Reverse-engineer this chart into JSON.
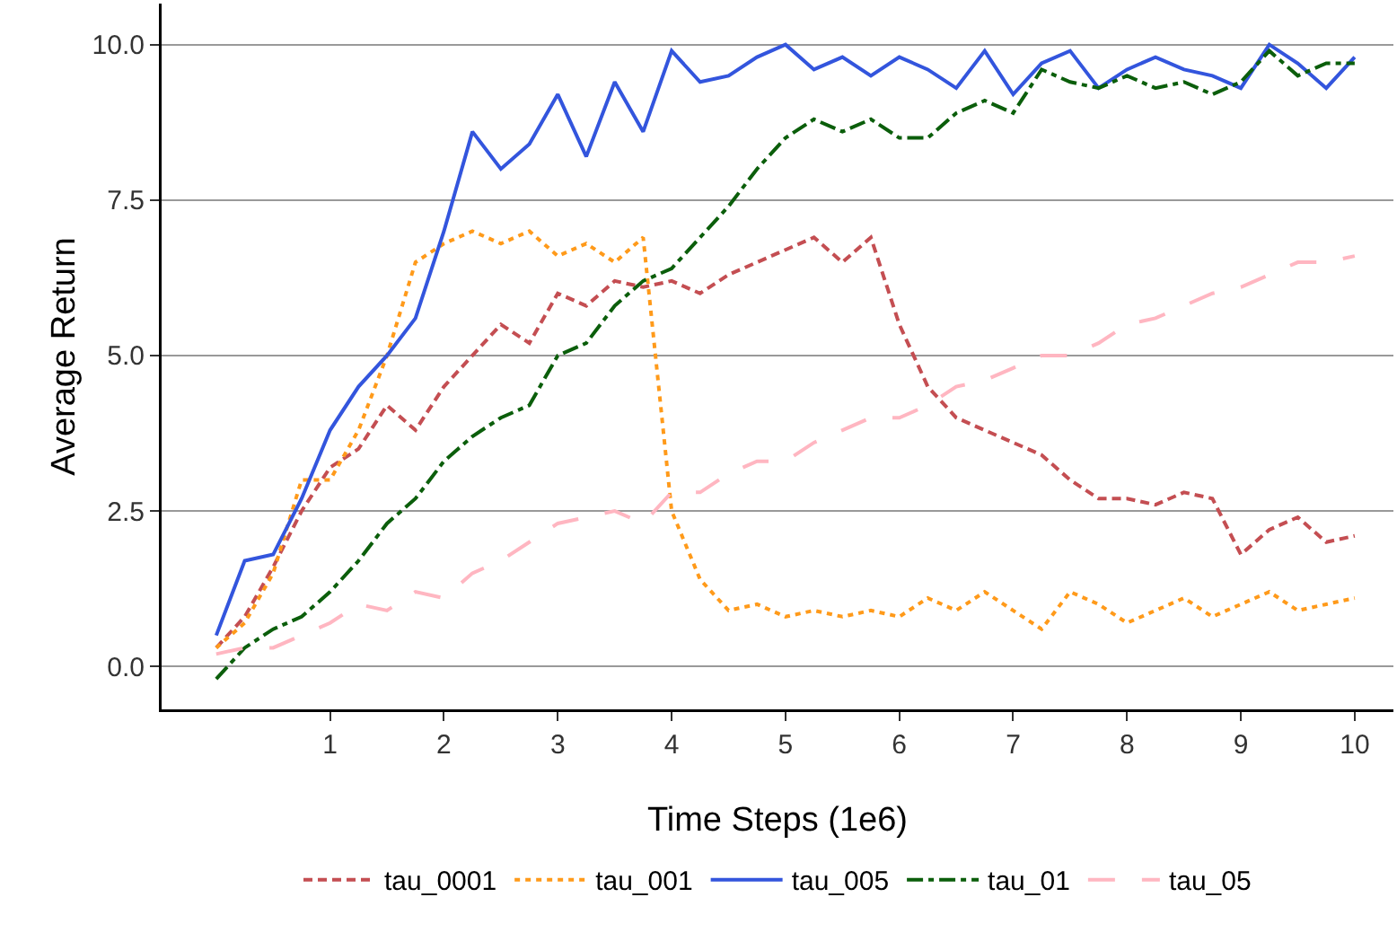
{
  "chart_data": {
    "type": "line",
    "xlabel": "Time Steps (1e6)",
    "ylabel": "Average Return",
    "x": [
      0,
      0.25,
      0.5,
      0.75,
      1,
      1.25,
      1.5,
      1.75,
      2,
      2.25,
      2.5,
      2.75,
      3,
      3.25,
      3.5,
      3.75,
      4,
      4.25,
      4.5,
      4.75,
      5,
      5.25,
      5.5,
      5.75,
      6,
      6.25,
      6.5,
      6.75,
      7,
      7.25,
      7.5,
      7.75,
      8,
      8.25,
      8.5,
      8.75,
      9,
      9.25,
      9.5,
      9.75,
      10
    ],
    "series": [
      {
        "name": "tau_0001",
        "color": "#c44e52",
        "line_style": "dashed",
        "values": [
          0.3,
          0.8,
          1.6,
          2.5,
          3.2,
          3.5,
          4.2,
          3.8,
          4.5,
          5.0,
          5.5,
          5.2,
          6.0,
          5.8,
          6.2,
          6.1,
          6.2,
          6.0,
          6.3,
          6.5,
          6.7,
          6.9,
          6.5,
          6.9,
          5.5,
          4.5,
          4.0,
          3.8,
          3.6,
          3.4,
          3.0,
          2.7,
          2.7,
          2.6,
          2.8,
          2.7,
          1.8,
          2.2,
          2.4,
          2.0,
          2.1
        ]
      },
      {
        "name": "tau_001",
        "color": "#ff9a1a",
        "line_style": "dotted",
        "values": [
          0.3,
          0.7,
          1.5,
          3.0,
          3.0,
          3.8,
          5.0,
          6.5,
          6.8,
          7.0,
          6.8,
          7.0,
          6.6,
          6.8,
          6.5,
          6.9,
          2.5,
          1.4,
          0.9,
          1.0,
          0.8,
          0.9,
          0.8,
          0.9,
          0.8,
          1.1,
          0.9,
          1.2,
          0.9,
          0.6,
          1.2,
          1.0,
          0.7,
          0.9,
          1.1,
          0.8,
          1.0,
          1.2,
          0.9,
          1.0,
          1.1
        ]
      },
      {
        "name": "tau_005",
        "color": "#3355dd",
        "line_style": "solid",
        "values": [
          0.5,
          1.7,
          1.8,
          2.7,
          3.8,
          4.5,
          5.0,
          5.6,
          7.0,
          8.6,
          8.0,
          8.4,
          9.2,
          8.2,
          9.4,
          8.6,
          9.9,
          9.4,
          9.5,
          9.8,
          10.0,
          9.6,
          9.8,
          9.5,
          9.8,
          9.6,
          9.3,
          9.9,
          9.2,
          9.7,
          9.9,
          9.3,
          9.6,
          9.8,
          9.6,
          9.5,
          9.3,
          10.0,
          9.7,
          9.3,
          9.8
        ]
      },
      {
        "name": "tau_01",
        "color": "#0b5e0b",
        "line_style": "dashdot",
        "values": [
          -0.2,
          0.3,
          0.6,
          0.8,
          1.2,
          1.7,
          2.3,
          2.7,
          3.3,
          3.7,
          4.0,
          4.2,
          5.0,
          5.2,
          5.8,
          6.2,
          6.4,
          6.9,
          7.4,
          8.0,
          8.5,
          8.8,
          8.6,
          8.8,
          8.5,
          8.5,
          8.9,
          9.1,
          8.9,
          9.6,
          9.4,
          9.3,
          9.5,
          9.3,
          9.4,
          9.2,
          9.4,
          9.9,
          9.5,
          9.7,
          9.7
        ]
      },
      {
        "name": "tau_05",
        "color": "#ffb6c1",
        "line_style": "longdash",
        "values": [
          0.2,
          0.3,
          0.3,
          0.5,
          0.7,
          1.0,
          0.9,
          1.2,
          1.1,
          1.5,
          1.7,
          2.0,
          2.3,
          2.4,
          2.5,
          2.3,
          2.8,
          2.8,
          3.1,
          3.3,
          3.3,
          3.6,
          3.8,
          4.0,
          4.0,
          4.2,
          4.5,
          4.6,
          4.8,
          5.0,
          5.0,
          5.2,
          5.5,
          5.6,
          5.8,
          6.0,
          6.1,
          6.3,
          6.5,
          6.5,
          6.6
        ]
      }
    ],
    "xlim": [
      -0.48,
      10.34
    ],
    "xticks": [
      1,
      2,
      3,
      4,
      5,
      6,
      7,
      8,
      9,
      10
    ],
    "ylim": [
      -0.69,
      10.66
    ],
    "yticks": [
      {
        "value": 0,
        "label": "0.0"
      },
      {
        "value": 2.5,
        "label": "2.5"
      },
      {
        "value": 5,
        "label": "5.0"
      },
      {
        "value": 7.5,
        "label": "7.5"
      },
      {
        "value": 10,
        "label": "10.0"
      }
    ],
    "grid": "y",
    "legend": "bottom",
    "marker": "none"
  }
}
